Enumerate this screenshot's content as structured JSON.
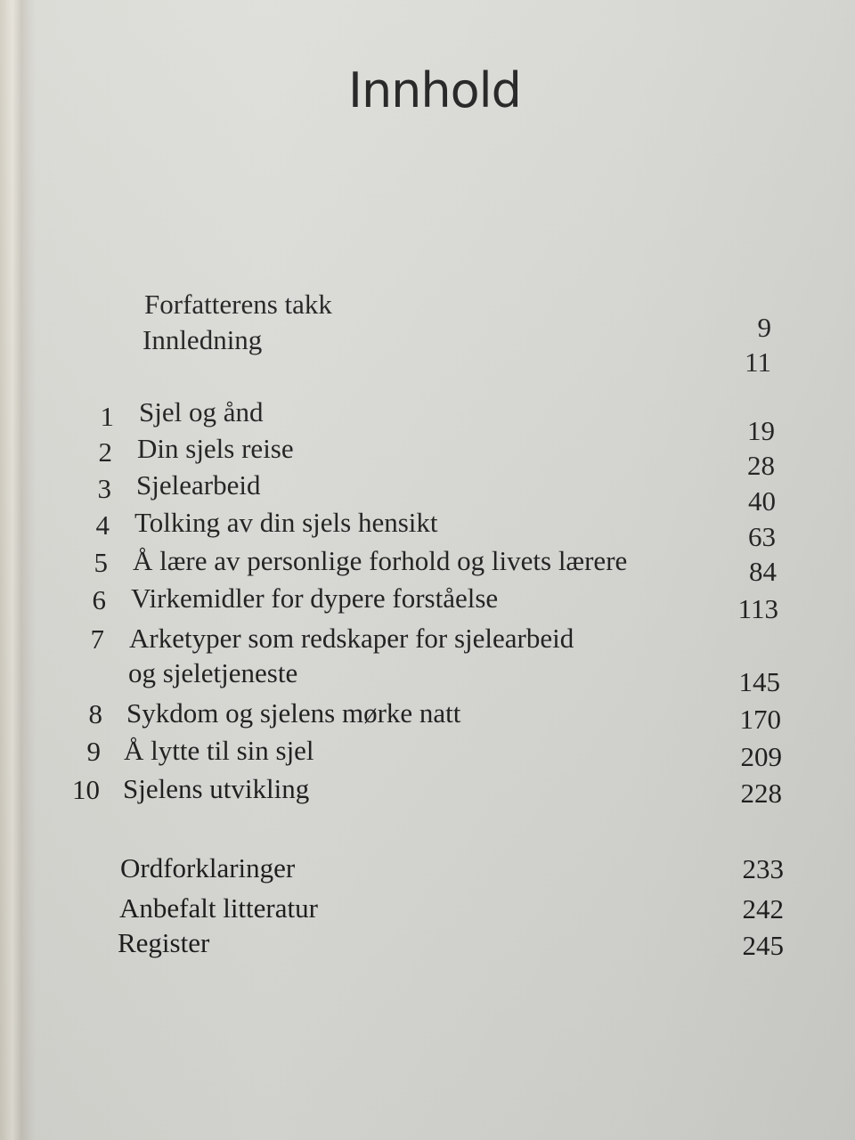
{
  "title": "Innhold",
  "front_matter": [
    {
      "title": "Forfatterens takk",
      "page": "9"
    },
    {
      "title": "Innledning",
      "page": "11"
    }
  ],
  "chapters": [
    {
      "number": "1",
      "title": "Sjel og ånd",
      "page": "19"
    },
    {
      "number": "2",
      "title": "Din sjels reise",
      "page": "28"
    },
    {
      "number": "3",
      "title": "Sjelearbeid",
      "page": "40"
    },
    {
      "number": "4",
      "title": "Tolking av din sjels hensikt",
      "page": "63"
    },
    {
      "number": "5",
      "title": "Å lære av personlige forhold og livets lærere",
      "page": "84"
    },
    {
      "number": "6",
      "title": "Virkemidler for dypere forståelse",
      "page": "113"
    },
    {
      "number": "7",
      "title": "Arketyper som redskaper for sjelearbeid",
      "title_cont": "og sjeletjeneste",
      "page": "145"
    },
    {
      "number": "8",
      "title": "Sykdom og sjelens mørke natt",
      "page": "170"
    },
    {
      "number": "9",
      "title": "Å lytte til sin sjel",
      "page": "209"
    },
    {
      "number": "10",
      "title": "Sjelens utvikling",
      "page": "228"
    }
  ],
  "back_matter": [
    {
      "title": "Ordforklaringer",
      "page": "233"
    },
    {
      "title": "Anbefalt litteratur",
      "page": "242"
    },
    {
      "title": "Register",
      "page": "245"
    }
  ]
}
